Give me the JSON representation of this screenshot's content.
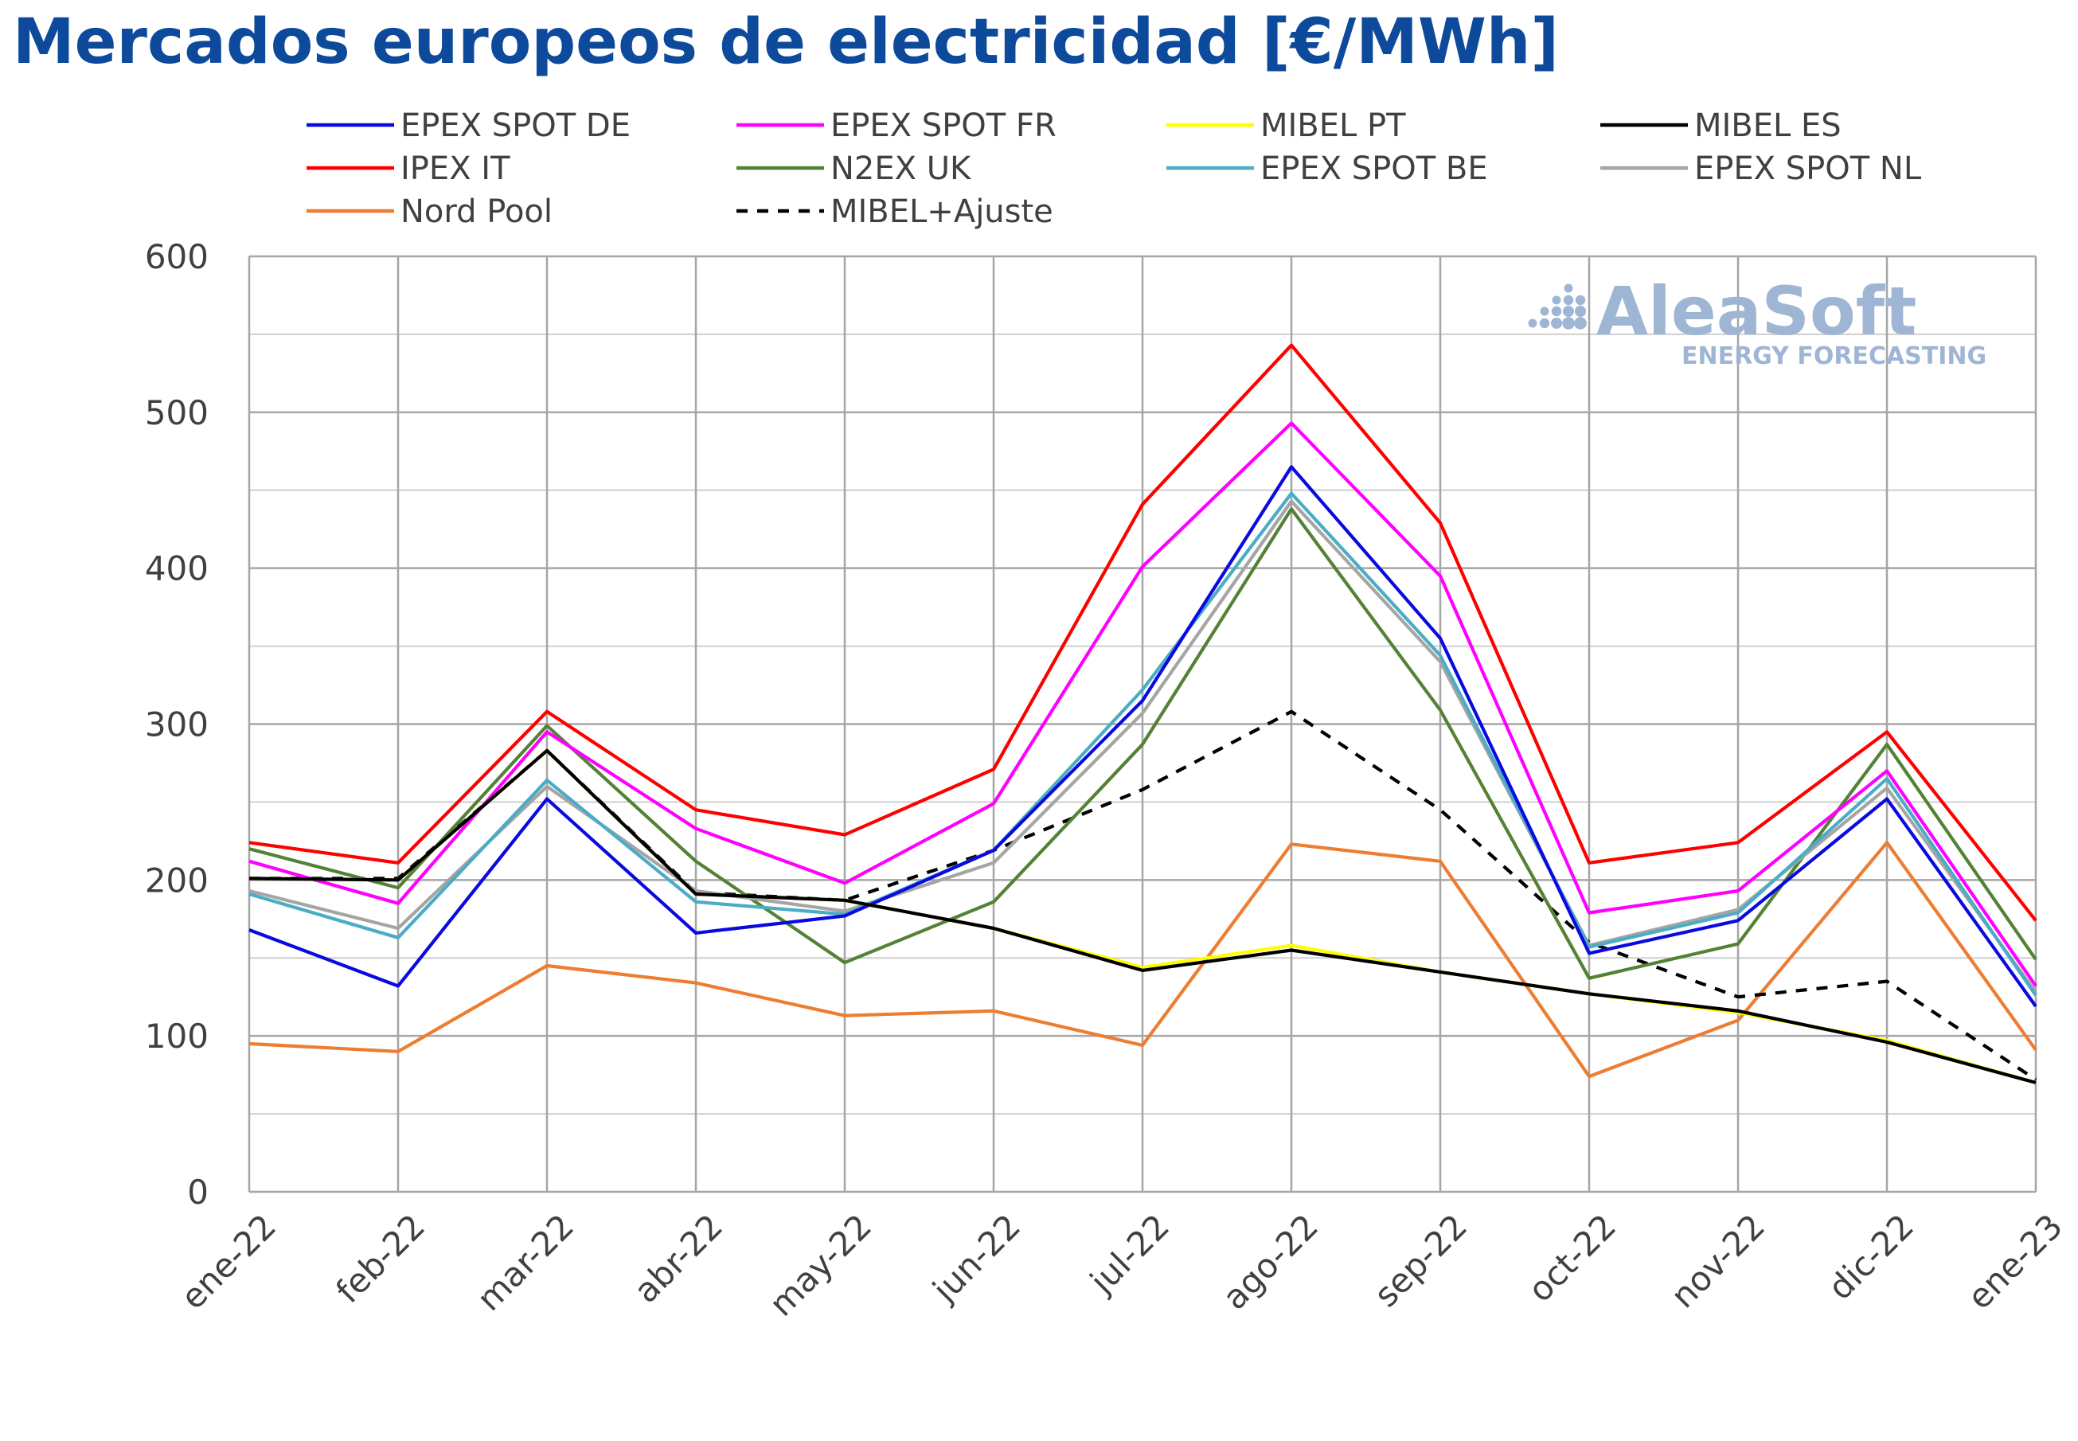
{
  "chart_data": {
    "type": "line",
    "title": "Mercados europeos de electricidad [€/MWh]",
    "x": [
      "ene-22",
      "feb-22",
      "mar-22",
      "abr-22",
      "may-22",
      "jun-22",
      "jul-22",
      "ago-22",
      "sep-22",
      "oct-22",
      "nov-22",
      "dic-22",
      "ene-23"
    ],
    "ylim": [
      0,
      600
    ],
    "yticks": [
      0,
      100,
      200,
      300,
      400,
      500,
      600
    ],
    "grid": true,
    "legend_position": "top",
    "watermark": {
      "brand": "AleaSoft",
      "tagline": "ENERGY FORECASTING"
    },
    "series": [
      {
        "name": "Nord Pool",
        "color": "#ed7d31",
        "dash": false,
        "values": [
          95,
          90,
          145,
          134,
          113,
          116,
          94,
          223,
          212,
          74,
          110,
          224,
          91
        ]
      },
      {
        "name": "MIBEL+Ajuste",
        "color": "#000000",
        "dash": true,
        "values": [
          201,
          201,
          283,
          192,
          187,
          219,
          258,
          308,
          245,
          160,
          125,
          135,
          72
        ]
      },
      {
        "name": "N2EX UK",
        "color": "#548235",
        "dash": false,
        "values": [
          220,
          195,
          299,
          212,
          147,
          186,
          287,
          438,
          309,
          137,
          159,
          287,
          149
        ]
      },
      {
        "name": "EPEX SPOT NL",
        "color": "#a5a5a5",
        "dash": false,
        "values": [
          193,
          169,
          260,
          193,
          180,
          211,
          307,
          443,
          340,
          158,
          181,
          259,
          128
        ]
      },
      {
        "name": "EPEX SPOT BE",
        "color": "#4bacc6",
        "dash": false,
        "values": [
          191,
          163,
          264,
          186,
          178,
          219,
          322,
          448,
          344,
          157,
          179,
          265,
          126
        ]
      },
      {
        "name": "EPEX SPOT DE",
        "color": "#0a0ae0",
        "dash": false,
        "values": [
          168,
          132,
          252,
          166,
          177,
          219,
          315,
          465,
          355,
          153,
          174,
          252,
          119
        ]
      },
      {
        "name": "EPEX SPOT FR",
        "color": "#ff00ff",
        "dash": false,
        "values": [
          212,
          185,
          295,
          233,
          198,
          249,
          401,
          493,
          395,
          179,
          193,
          270,
          132
        ]
      },
      {
        "name": "IPEX IT",
        "color": "#ff0000",
        "dash": false,
        "values": [
          224,
          211,
          308,
          245,
          229,
          271,
          441,
          543,
          429,
          211,
          224,
          295,
          174
        ]
      },
      {
        "name": "MIBEL PT",
        "color": "#ffff00",
        "dash": false,
        "values": [
          201,
          200,
          283,
          191,
          187,
          169,
          144,
          158,
          141,
          127,
          115,
          97,
          70
        ]
      },
      {
        "name": "MIBEL ES",
        "color": "#000000",
        "dash": false,
        "values": [
          201,
          200,
          283,
          191,
          187,
          169,
          142,
          155,
          141,
          127,
          116,
          96,
          70
        ]
      }
    ],
    "legend_order": [
      "EPEX SPOT DE",
      "EPEX SPOT FR",
      "MIBEL PT",
      "MIBEL ES",
      "IPEX IT",
      "N2EX UK",
      "EPEX SPOT BE",
      "EPEX SPOT NL",
      "Nord Pool",
      "MIBEL+Ajuste"
    ]
  }
}
